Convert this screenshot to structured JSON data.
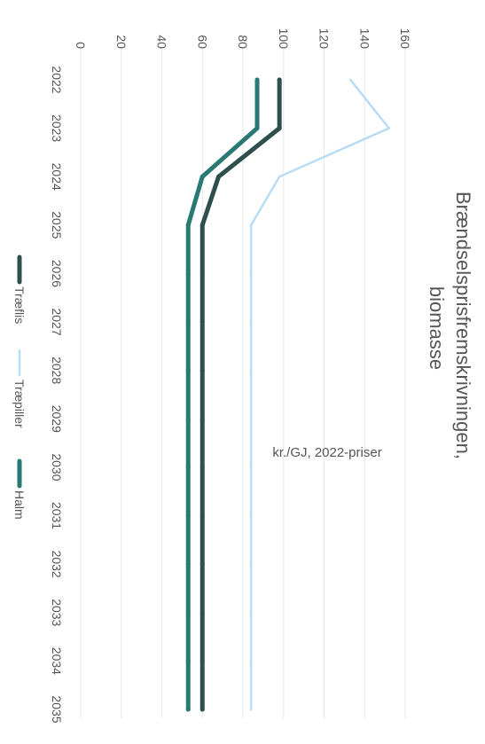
{
  "chart_data": {
    "type": "line",
    "title_lines": [
      "Brændselsprisfremskrivningen,",
      "biomasse"
    ],
    "ylabel": "kr./GJ, 2022-priser",
    "xlabel": "",
    "ylim": [
      0,
      160
    ],
    "yticks": [
      0,
      20,
      40,
      60,
      80,
      100,
      120,
      140,
      160
    ],
    "categories": [
      "2022",
      "2023",
      "2024",
      "2025",
      "2026",
      "2027",
      "2028",
      "2029",
      "2030",
      "2031",
      "2032",
      "2033",
      "2034",
      "2035"
    ],
    "grid": true,
    "legend_position": "bottom",
    "series": [
      {
        "name": "Træflis",
        "color": "#2f4f4f",
        "width": 5,
        "values": [
          98,
          98,
          68,
          60,
          60,
          60,
          60,
          60,
          60,
          60,
          60,
          60,
          60,
          60
        ]
      },
      {
        "name": "Træpiller",
        "color": "#b7dcf3",
        "width": 2.5,
        "values": [
          133,
          152,
          98,
          84,
          84,
          84,
          84,
          84,
          84,
          84,
          84,
          84,
          84,
          84
        ]
      },
      {
        "name": "Halm",
        "color": "#2a7a73",
        "width": 5,
        "values": [
          87,
          87,
          60,
          53,
          53,
          53,
          53,
          53,
          53,
          53,
          53,
          53,
          53,
          53
        ]
      }
    ]
  }
}
